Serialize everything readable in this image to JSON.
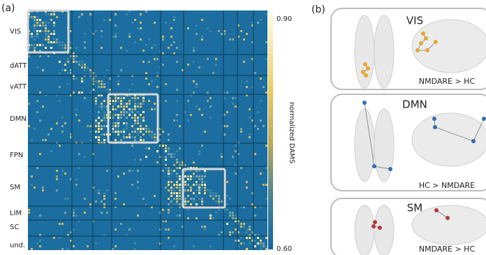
{
  "panel_a": {
    "label": "(a)",
    "networks": [
      "VIS",
      "dATT",
      "vATT",
      "DMN",
      "FPN",
      "SM",
      "LIM",
      "SC",
      "und."
    ],
    "colorbar": {
      "label": "normalized DAMS",
      "max": "0.90",
      "min": "0.60"
    }
  },
  "panel_b": {
    "label": "(b)",
    "rows": [
      {
        "network": "VIS",
        "contrast": "NMDARE > HC"
      },
      {
        "network": "DMN",
        "contrast": "HC > NMDARE"
      },
      {
        "network": "SM",
        "contrast": "NMDARE > HC"
      }
    ]
  }
}
